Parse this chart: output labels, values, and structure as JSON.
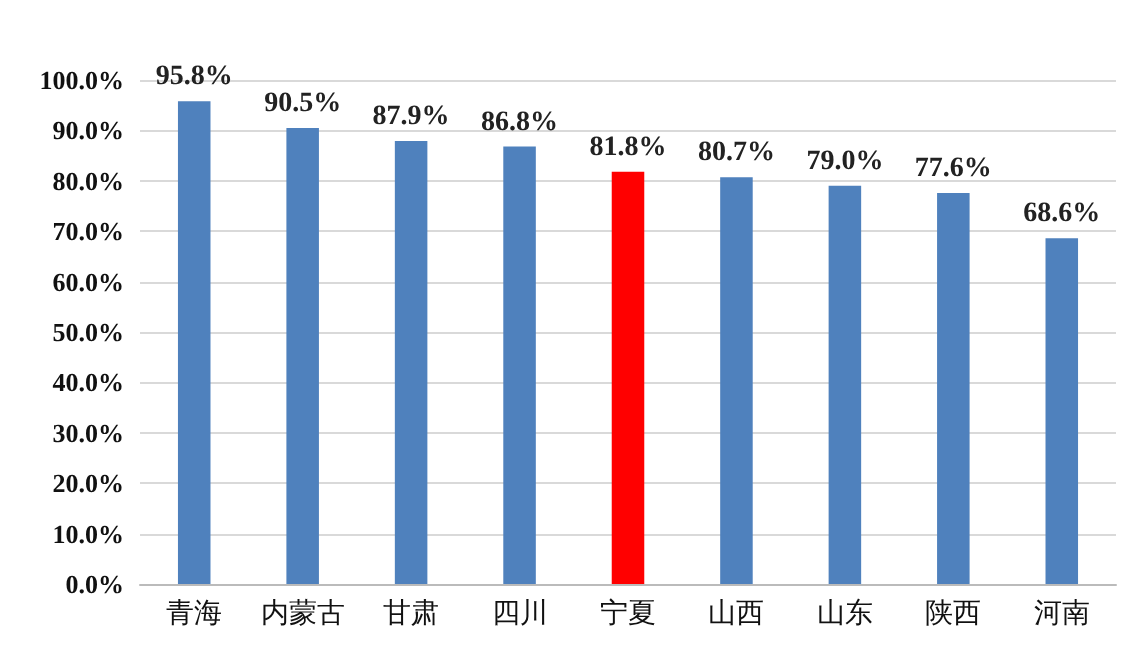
{
  "chart_data": {
    "type": "bar",
    "categories": [
      "青海",
      "内蒙古",
      "甘肃",
      "四川",
      "宁夏",
      "山西",
      "山东",
      "陕西",
      "河南"
    ],
    "values": [
      95.8,
      90.5,
      87.9,
      86.8,
      81.8,
      80.7,
      79.0,
      77.6,
      68.6
    ],
    "colors": [
      "#4f81bd",
      "#4f81bd",
      "#4f81bd",
      "#4f81bd",
      "#ff0000",
      "#4f81bd",
      "#4f81bd",
      "#4f81bd",
      "#4f81bd"
    ],
    "value_labels": [
      "95.8%",
      "90.5%",
      "87.9%",
      "86.8%",
      "81.8%",
      "80.7%",
      "79.0%",
      "77.6%",
      "68.6%"
    ],
    "ylim": [
      0,
      100
    ],
    "yticks": [
      {
        "value": 0,
        "label": "0.0%"
      },
      {
        "value": 10,
        "label": "10.0%"
      },
      {
        "value": 20,
        "label": "20.0%"
      },
      {
        "value": 30,
        "label": "30.0%"
      },
      {
        "value": 40,
        "label": "40.0%"
      },
      {
        "value": 50,
        "label": "50.0%"
      },
      {
        "value": 60,
        "label": "60.0%"
      },
      {
        "value": 70,
        "label": "70.0%"
      },
      {
        "value": 80,
        "label": "80.0%"
      },
      {
        "value": 90,
        "label": "90.0%"
      },
      {
        "value": 100,
        "label": "100.0%"
      }
    ],
    "grid": "y"
  }
}
